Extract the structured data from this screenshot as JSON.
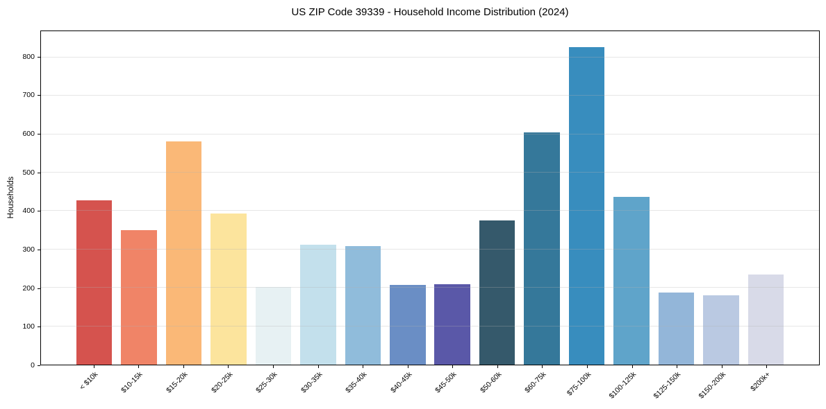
{
  "chart_data": {
    "type": "bar",
    "title": "US ZIP Code 39339 - Household Income Distribution (2024)",
    "xlabel": "",
    "ylabel": "Households",
    "categories": [
      "< $10k",
      "$10-15k",
      "$15-20k",
      "$20-25k",
      "$25-30k",
      "$30-35k",
      "$35-40k",
      "$40-45k",
      "$45-50k",
      "$50-60k",
      "$60-75k",
      "$75-100k",
      "$100-125k",
      "$125-150k",
      "$150-200k",
      "$200k+"
    ],
    "values": [
      427,
      351,
      582,
      394,
      203,
      312,
      308,
      207,
      210,
      376,
      604,
      826,
      437,
      187,
      180,
      234
    ],
    "bar_colors": [
      "#d5534e",
      "#f08467",
      "#fab877",
      "#fce49d",
      "#e7f1f3",
      "#c3e0ec",
      "#90bcdb",
      "#6a8ec5",
      "#5a58a8",
      "#35596b",
      "#35789a",
      "#388dbe",
      "#5fa4ca",
      "#93b6d9",
      "#bac9e2",
      "#d8dae8"
    ],
    "ylim": [
      0,
      868
    ],
    "yticks": [
      0,
      100,
      200,
      300,
      400,
      500,
      600,
      700,
      800
    ],
    "grid": "horizontal gridlines, drawn above bars",
    "legend": "none",
    "style": {
      "background_color": "#ffffff",
      "spine_color": "#000000",
      "grid_color": "#b0b0b0",
      "text_color": "#000000"
    }
  }
}
